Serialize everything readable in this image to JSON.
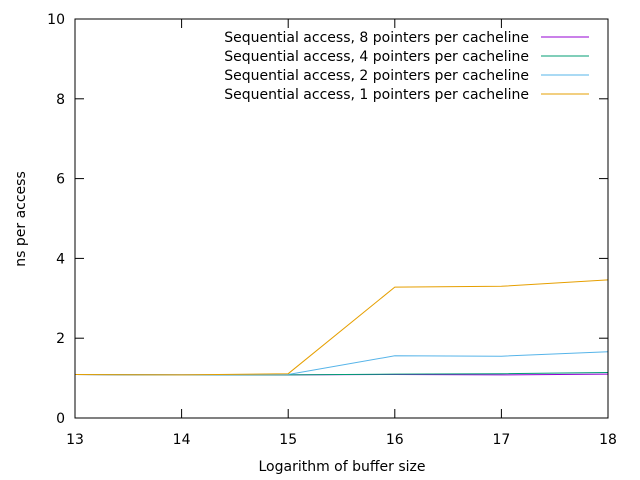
{
  "chart_data": {
    "type": "line",
    "xlabel": "Logarithm of buffer size",
    "ylabel": "ns per access",
    "xlim": [
      13,
      18
    ],
    "ylim": [
      0,
      10
    ],
    "x_ticks": [
      "13",
      "14",
      "15",
      "16",
      "17",
      "18"
    ],
    "y_ticks": [
      "0",
      "2",
      "4",
      "6",
      "8",
      "10"
    ],
    "grid": false,
    "legend_position": "top-right",
    "x": [
      13,
      14,
      15,
      16,
      17,
      18
    ],
    "series": [
      {
        "name": "Sequential access, 8 pointers per cacheline",
        "color": "#9400d3",
        "values": [
          1.09,
          1.08,
          1.08,
          1.09,
          1.08,
          1.1
        ]
      },
      {
        "name": "Sequential access, 4 pointers per cacheline",
        "color": "#009e73",
        "values": [
          1.09,
          1.08,
          1.08,
          1.1,
          1.11,
          1.14
        ]
      },
      {
        "name": "Sequential access, 2 pointers per cacheline",
        "color": "#56b4e9",
        "values": [
          1.09,
          1.08,
          1.09,
          1.56,
          1.55,
          1.66
        ]
      },
      {
        "name": "Sequential access, 1 pointers per cacheline",
        "color": "#e69f00",
        "values": [
          1.09,
          1.08,
          1.11,
          3.28,
          3.3,
          3.46
        ]
      }
    ]
  }
}
